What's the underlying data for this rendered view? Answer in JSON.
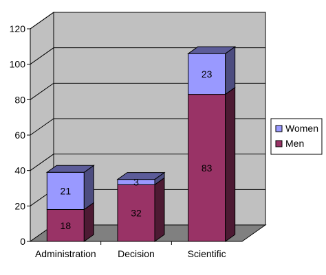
{
  "chart_data": {
    "type": "bar",
    "stacked": true,
    "three_d": true,
    "categories": [
      "Administration",
      "Decision",
      "Scientific"
    ],
    "series": [
      {
        "name": "Men",
        "values": [
          18,
          32,
          83
        ],
        "color": "#993366"
      },
      {
        "name": "Women",
        "values": [
          21,
          3,
          23
        ],
        "color": "#9999ff"
      }
    ],
    "ylim": [
      0,
      120
    ],
    "yticks": [
      0,
      20,
      40,
      60,
      80,
      100,
      120
    ],
    "grid": true,
    "legend_position": "right",
    "wall_color": "#c0c0c0",
    "floor_color": "#808080"
  }
}
